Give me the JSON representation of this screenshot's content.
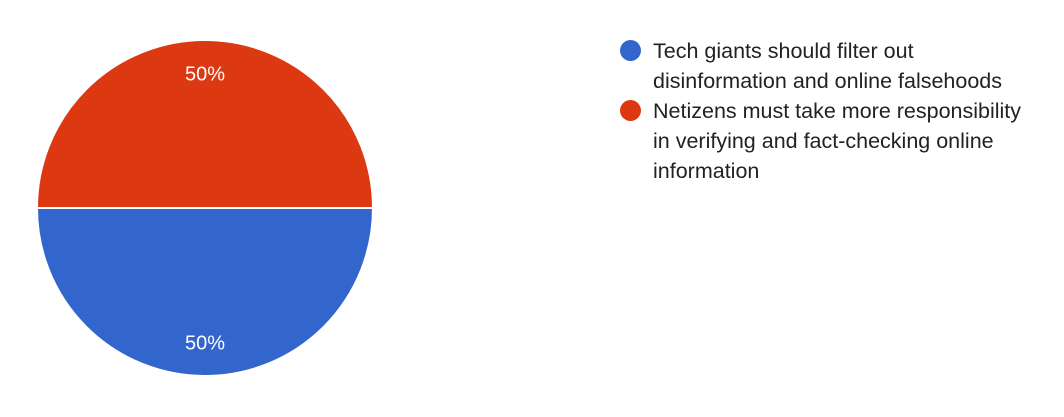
{
  "chart_data": {
    "type": "pie",
    "title": "",
    "slices": [
      {
        "label": "Tech giants should filter out disinformation and online falsehoods",
        "value": 50,
        "display": "50%",
        "color": "#3366cc"
      },
      {
        "label": "Netizens must take more responsibility in verifying and fact-checking online information",
        "value": 50,
        "display": "50%",
        "color": "#dc3912"
      }
    ],
    "legend_position": "right",
    "legend": [
      {
        "lines": [
          "Tech giants should filter out",
          "disinformation and online falsehoods"
        ],
        "color": "#3366cc"
      },
      {
        "lines": [
          "Netizens must take more responsibility",
          "in verifying and fact-checking online",
          "information"
        ],
        "color": "#dc3912"
      }
    ]
  }
}
